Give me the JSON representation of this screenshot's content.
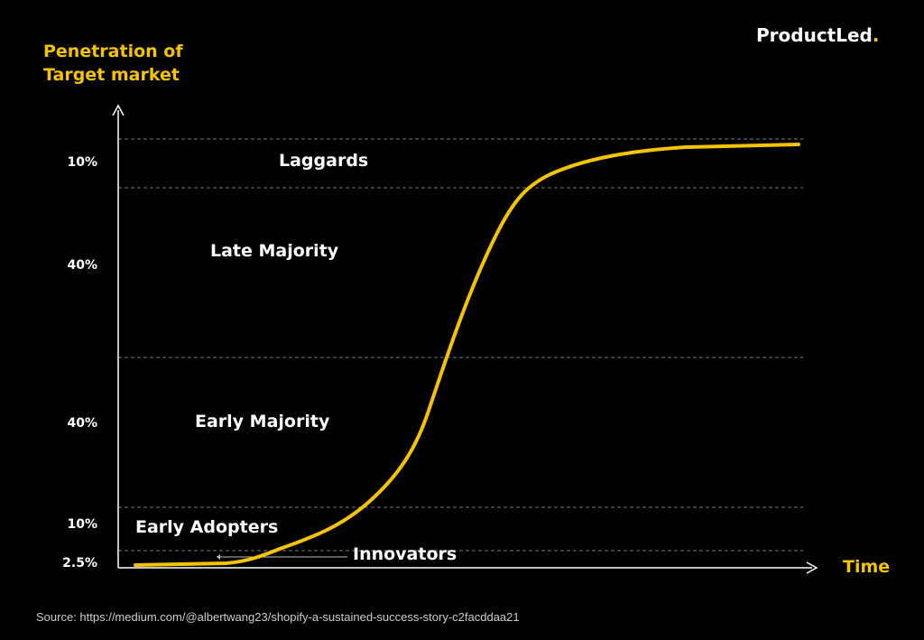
{
  "brand": {
    "name": "ProductLed",
    "dot_color": "#f5c400"
  },
  "chart_data": {
    "type": "line",
    "ylabel": "Penetration of Target market",
    "xlabel": "Time",
    "bands": [
      {
        "label": "Innovators",
        "share": "2.5%"
      },
      {
        "label": "Early Adopters",
        "share": "10%"
      },
      {
        "label": "Early Majority",
        "share": "40%"
      },
      {
        "label": "Late Majority",
        "share": "40%"
      },
      {
        "label": "Laggards",
        "share": "10%"
      }
    ],
    "curve": "S-curve (cumulative adoption)",
    "grid": "dashed band separators",
    "colors": {
      "curve": "#f5c400",
      "axis_title": "#f5c400",
      "text": "#ffffff",
      "background": "#000000"
    }
  },
  "source": "Source: https://medium.com/@albertwang23/shopify-a-sustained-success-story-c2facddaa21"
}
